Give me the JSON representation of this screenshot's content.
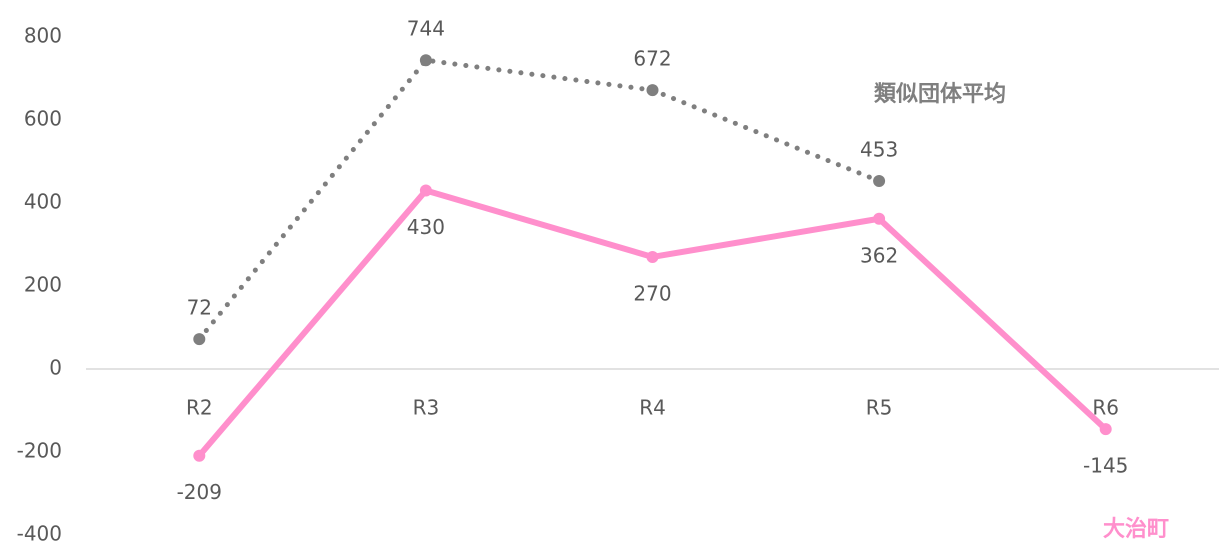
{
  "chart_data": {
    "type": "line",
    "categories": [
      "R2",
      "R3",
      "R4",
      "R5",
      "R6"
    ],
    "series": [
      {
        "name": "類似団体平均",
        "color": "#7f7f7f",
        "dash": "dotted",
        "values": [
          72,
          744,
          672,
          453,
          null
        ]
      },
      {
        "name": "大治町",
        "color": "#ff8fcc",
        "dash": "solid",
        "values": [
          -209,
          430,
          270,
          362,
          -145
        ]
      }
    ],
    "ylim": [
      -400,
      800
    ],
    "yticks": [
      -400,
      -200,
      0,
      200,
      400,
      600,
      800
    ],
    "grid": false
  }
}
